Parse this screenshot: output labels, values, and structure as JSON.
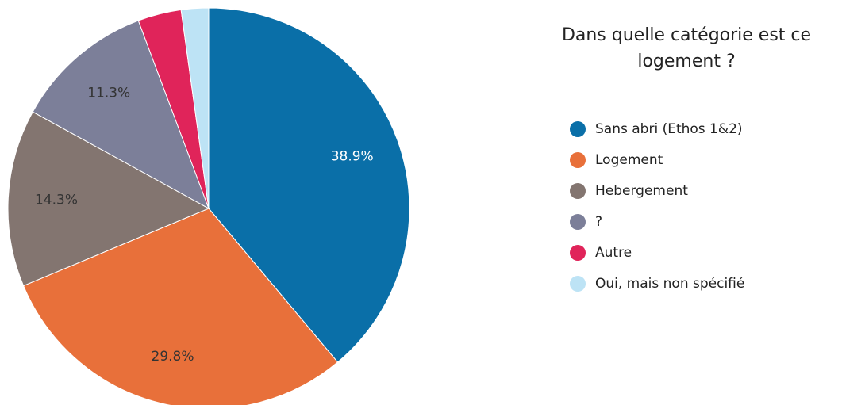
{
  "chart_data": {
    "type": "pie",
    "title": "Dans quelle catégorie est ce logement ?",
    "categories": [
      "Sans abri (Ethos 1&2)",
      "Logement",
      "Hebergement",
      "?",
      "Autre",
      "Oui, mais non spécifié"
    ],
    "values": [
      38.9,
      29.8,
      14.3,
      11.3,
      3.5,
      2.2
    ],
    "value_labels": [
      "38.9%",
      "29.8%",
      "14.3%",
      "11.3%",
      null,
      null
    ],
    "colors": [
      "#0a6fa8",
      "#e8703a",
      "#837570",
      "#7c7f99",
      "#e0245a",
      "#bde3f5"
    ],
    "label_colors": [
      "#ffffff",
      "#333333",
      "#333333",
      "#333333",
      "#333333",
      "#333333"
    ]
  }
}
